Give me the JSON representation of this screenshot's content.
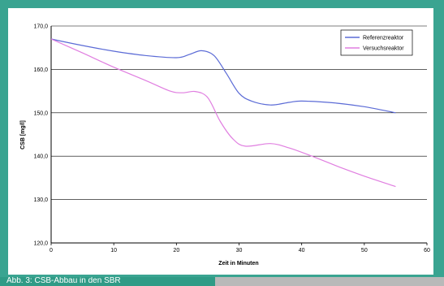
{
  "caption": "Abb. 3: CSB-Abbau in den SBR",
  "chart_data": {
    "type": "line",
    "xlabel": "Zeit in Minuten",
    "ylabel": "CSB [mg/l]",
    "xlim": [
      0,
      60
    ],
    "ylim": [
      120,
      170
    ],
    "x_ticks": [
      "0",
      "10",
      "20",
      "30",
      "40",
      "50",
      "60"
    ],
    "y_ticks": [
      "120,0",
      "130,0",
      "140,0",
      "150,0",
      "160,0",
      "170,0"
    ],
    "y_tick_values": [
      120,
      130,
      140,
      150,
      160,
      170
    ],
    "grid": "horizontal",
    "legend_position": "top-right",
    "series": [
      {
        "name": "Referenzreaktor",
        "color": "#5b6bd6",
        "points": [
          [
            0,
            167
          ],
          [
            5,
            165.5
          ],
          [
            10,
            164.2
          ],
          [
            15,
            163.2
          ],
          [
            20,
            162.7
          ],
          [
            22,
            163.4
          ],
          [
            24,
            164.3
          ],
          [
            26,
            163.2
          ],
          [
            28,
            159
          ],
          [
            30,
            154.5
          ],
          [
            32,
            152.7
          ],
          [
            35,
            151.8
          ],
          [
            38,
            152.4
          ],
          [
            40,
            152.7
          ],
          [
            45,
            152.3
          ],
          [
            50,
            151.4
          ],
          [
            55,
            150
          ]
        ]
      },
      {
        "name": "Versuchsreaktor",
        "color": "#e07ee0",
        "points": [
          [
            0,
            167
          ],
          [
            5,
            163.8
          ],
          [
            10,
            160.5
          ],
          [
            15,
            157.5
          ],
          [
            19,
            155
          ],
          [
            21,
            154.6
          ],
          [
            23,
            154.9
          ],
          [
            25,
            153.5
          ],
          [
            27,
            148
          ],
          [
            29,
            144
          ],
          [
            31,
            142.3
          ],
          [
            35,
            142.9
          ],
          [
            38,
            141.9
          ],
          [
            42,
            139.8
          ],
          [
            46,
            137.5
          ],
          [
            50,
            135.4
          ],
          [
            55,
            133
          ]
        ]
      }
    ]
  }
}
